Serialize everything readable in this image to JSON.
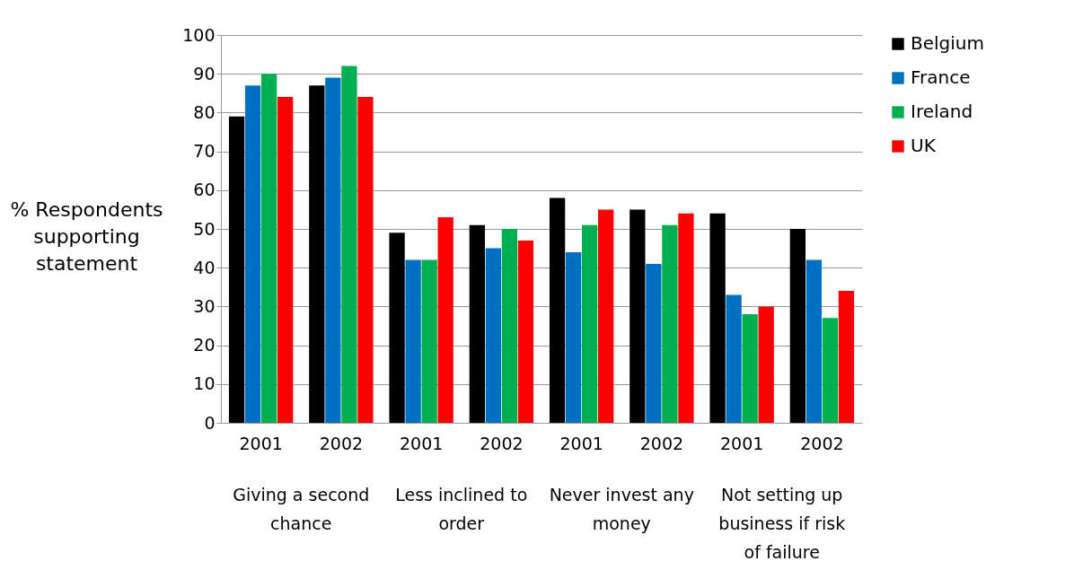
{
  "chart_data": {
    "type": "bar",
    "ylabel": "% Respondents supporting statement",
    "categories": [
      "2001",
      "2002",
      "2001",
      "2002",
      "2001",
      "2002",
      "2001",
      "2002"
    ],
    "annotations": [
      "Giving a second chance",
      "Less inclined to order",
      "Never invest any money",
      "Not setting up business if risk of failure"
    ],
    "series": [
      {
        "name": "Belgium",
        "color": "#000000",
        "values": [
          79,
          87,
          49,
          51,
          58,
          55,
          54,
          50
        ]
      },
      {
        "name": "France",
        "color": "#0070c0",
        "values": [
          87,
          89,
          42,
          45,
          44,
          41,
          33,
          42
        ]
      },
      {
        "name": "Ireland",
        "color": "#00b050",
        "values": [
          90,
          92,
          42,
          50,
          51,
          51,
          28,
          27
        ]
      },
      {
        "name": "UK",
        "color": "#ff0000",
        "values": [
          84,
          84,
          53,
          47,
          55,
          54,
          30,
          34
        ]
      }
    ],
    "ylim": [
      0,
      100
    ],
    "yticks": [
      0,
      10,
      20,
      30,
      40,
      50,
      60,
      70,
      80,
      90,
      100
    ],
    "grid": "y",
    "legend": "right"
  }
}
